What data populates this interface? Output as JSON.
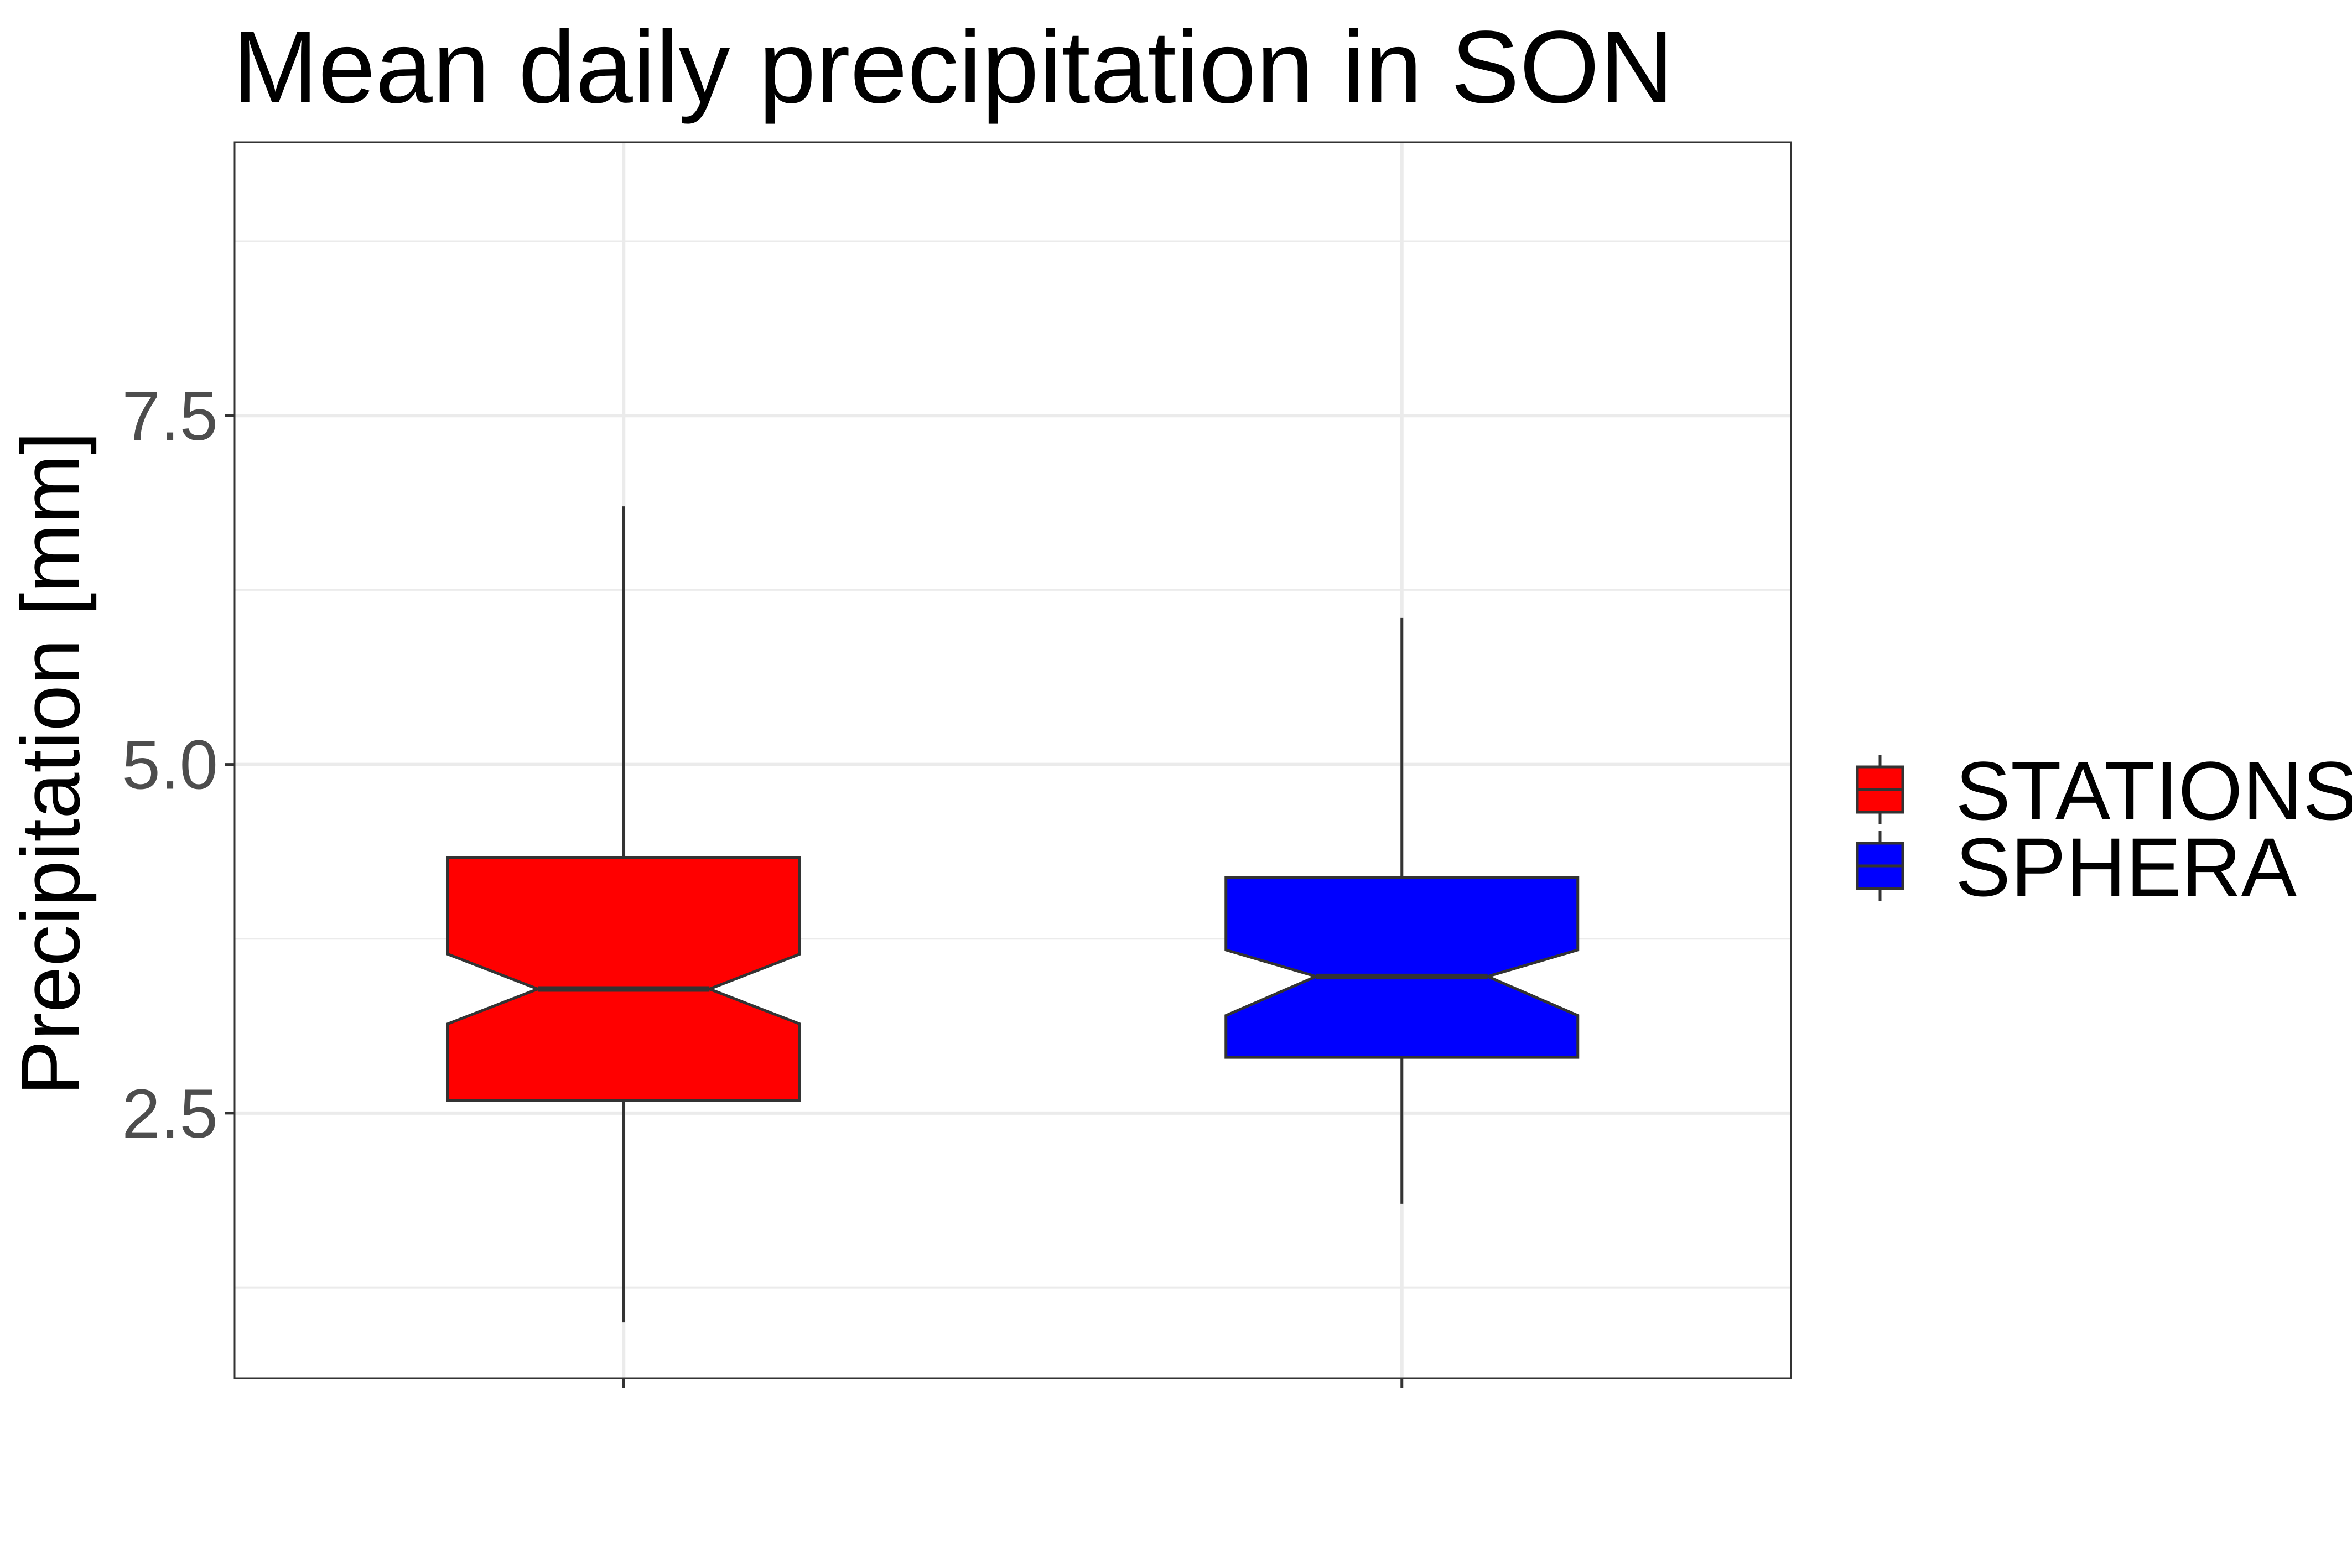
{
  "chart_data": {
    "type": "boxplot",
    "title": "Mean daily precipitation in SON",
    "xlabel": "",
    "ylabel": "Precipitation [mm]",
    "ylim": [
      0.6,
      9.46
    ],
    "yticks": [
      2.5,
      5.0,
      7.5
    ],
    "ytick_labels": [
      "2.5",
      "5.0",
      "7.5"
    ],
    "notched": true,
    "grid": true,
    "legend_position": "right",
    "series": [
      {
        "name": "STATIONS",
        "color": "#ff0000",
        "whisker_low": 1.0,
        "q1": 2.59,
        "median": 3.39,
        "q3": 4.33,
        "whisker_high": 6.85,
        "notch_low": 3.14,
        "notch_high": 3.64
      },
      {
        "name": "SPHERA",
        "color": "#0000ff",
        "whisker_low": 1.85,
        "q1": 2.9,
        "median": 3.48,
        "q3": 4.19,
        "whisker_high": 6.05,
        "notch_low": 3.2,
        "notch_high": 3.67
      }
    ]
  }
}
